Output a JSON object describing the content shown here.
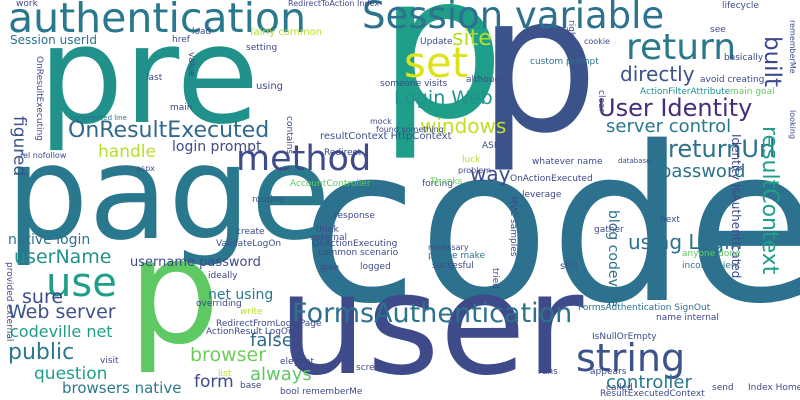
{
  "words": [
    {
      "text": "code",
      "color": "#2c728e"
    },
    {
      "text": "p",
      "color": "#1f9e89"
    },
    {
      "text": "user",
      "color": "#3e4a89"
    },
    {
      "text": "page",
      "color": "#2a788e"
    },
    {
      "text": "pre",
      "color": "#21918c"
    },
    {
      "text": "p",
      "color": "#3b528b"
    },
    {
      "text": "p",
      "color": "#5ec962"
    },
    {
      "text": "authentication",
      "color": "#2a788e"
    },
    {
      "text": "Session variable",
      "color": "#2c728e"
    },
    {
      "text": "method",
      "color": "#3e4a89"
    },
    {
      "text": "use",
      "color": "#1f9e89"
    },
    {
      "text": "set",
      "color": "#dde318"
    },
    {
      "text": "return",
      "color": "#2a788e"
    },
    {
      "text": "string",
      "color": "#3b528b"
    },
    {
      "text": "FormsAuthentication",
      "color": "#2c728e"
    },
    {
      "text": "OnResultExecuted",
      "color": "#31688e"
    },
    {
      "text": "User Identity",
      "color": "#472c7a"
    },
    {
      "text": "returnUrl",
      "color": "#2c728e"
    },
    {
      "text": "resultContext",
      "color": "#1f9e89"
    },
    {
      "text": "built",
      "color": "#3e4a89"
    },
    {
      "text": "directly",
      "color": "#3b528b"
    },
    {
      "text": "Login Web",
      "color": "#21918c"
    },
    {
      "text": "site",
      "color": "#b5de2b"
    },
    {
      "text": "password",
      "color": "#2c728e"
    },
    {
      "text": "windows",
      "color": "#c2df23"
    },
    {
      "text": "server control",
      "color": "#2a788e"
    },
    {
      "text": "userName",
      "color": "#21918c"
    },
    {
      "text": "Web server",
      "color": "#3b528b"
    },
    {
      "text": "using Login",
      "color": "#2c728e"
    },
    {
      "text": "public",
      "color": "#2a788e"
    },
    {
      "text": "browser",
      "color": "#6ccd5a"
    },
    {
      "text": "false",
      "color": "#31688e"
    },
    {
      "text": "question",
      "color": "#1f9e89"
    },
    {
      "text": "always",
      "color": "#5ec962"
    },
    {
      "text": "form",
      "color": "#3e4a89"
    },
    {
      "text": "controller",
      "color": "#2a788e"
    },
    {
      "text": "handle",
      "color": "#b5de2b"
    },
    {
      "text": "login prompt",
      "color": "#3e4a89"
    },
    {
      "text": "way",
      "color": "#3e4a89"
    },
    {
      "text": "figured",
      "color": "#3b528b"
    },
    {
      "text": "sure",
      "color": "#3e4a89"
    },
    {
      "text": "codeville net",
      "color": "#1f9e89"
    },
    {
      "text": "browsers native",
      "color": "#2a788e"
    },
    {
      "text": "native login",
      "color": "#2c728e"
    },
    {
      "text": "username password",
      "color": "#3e4a89"
    },
    {
      "text": "net using",
      "color": "#2a788e"
    },
    {
      "text": "blog codeville",
      "color": "#2c728e"
    },
    {
      "text": "Identity IsAuthenticated",
      "color": "#3e4a89"
    },
    {
      "text": "resultContext HttpContext",
      "color": "#3b528b"
    },
    {
      "text": "Session userId",
      "color": "#2c728e"
    },
    {
      "text": "ActionFilterAttribute",
      "color": "#21918c"
    },
    {
      "text": "RedirectFromLoginPage",
      "color": "#3e4a89"
    },
    {
      "text": "FormsAuthentication SignOut",
      "color": "#2c728e"
    },
    {
      "text": "IsNullOrEmpty",
      "color": "#3e4a89"
    },
    {
      "text": "OnActionExecuting",
      "color": "#3e4a89"
    },
    {
      "text": "ValidateLogOn",
      "color": "#3b528b"
    },
    {
      "text": "OnActionExecuted",
      "color": "#3e4a89"
    },
    {
      "text": "AccountController",
      "color": "#5ec962"
    },
    {
      "text": "please make",
      "color": "#2c728e"
    },
    {
      "text": "necessary",
      "color": "#3e4a89"
    },
    {
      "text": "succesful",
      "color": "#3e4a89"
    },
    {
      "text": "common scenario",
      "color": "#3e4a89"
    },
    {
      "text": "logged",
      "color": "#3e4a89"
    },
    {
      "text": "still",
      "color": "#3b528b"
    },
    {
      "text": "gather",
      "color": "#3e4a89"
    },
    {
      "text": "next",
      "color": "#3e4a89"
    },
    {
      "text": "anyone done",
      "color": "#5ec962"
    },
    {
      "text": "inconvenient",
      "color": "#2c728e"
    },
    {
      "text": "database",
      "color": "#3e4a89"
    },
    {
      "text": "whatever name",
      "color": "#3e4a89"
    },
    {
      "text": "forcing",
      "color": "#3e4a89"
    },
    {
      "text": "Thanks",
      "color": "#6ccd5a"
    },
    {
      "text": "problem",
      "color": "#3e4a89"
    },
    {
      "text": "luck",
      "color": "#b5de2b"
    },
    {
      "text": "Redirect",
      "color": "#3e4a89"
    },
    {
      "text": "mock",
      "color": "#3e4a89"
    },
    {
      "text": "found something",
      "color": "#3e4a89"
    },
    {
      "text": "someone visits",
      "color": "#3e4a89"
    },
    {
      "text": "although",
      "color": "#3e4a89"
    },
    {
      "text": "custom prompt",
      "color": "#2c728e"
    },
    {
      "text": "Update",
      "color": "#3e4a89"
    },
    {
      "text": "cookie",
      "color": "#3e4a89"
    },
    {
      "text": "see",
      "color": "#3e4a89"
    },
    {
      "text": "basically",
      "color": "#3e4a89"
    },
    {
      "text": "lifecycle",
      "color": "#3e4a89"
    },
    {
      "text": "avoid creating",
      "color": "#3e4a89"
    },
    {
      "text": "main goal",
      "color": "#5ec962"
    },
    {
      "text": "rememberMe",
      "color": "#3e4a89"
    },
    {
      "text": "looking",
      "color": "#3e4a89"
    },
    {
      "text": "work",
      "color": "#3e4a89"
    },
    {
      "text": "href",
      "color": "#3e4a89"
    },
    {
      "text": "load",
      "color": "#3e4a89"
    },
    {
      "text": "fairly common",
      "color": "#b5de2b"
    },
    {
      "text": "setting",
      "color": "#3e4a89"
    },
    {
      "text": "main",
      "color": "#3e4a89"
    },
    {
      "text": "last",
      "color": "#3e4a89"
    },
    {
      "text": "value",
      "color": "#3e4a89"
    },
    {
      "text": "using",
      "color": "#3e4a89"
    },
    {
      "text": "commented line",
      "color": "#2c728e"
    },
    {
      "text": "rel nofollow",
      "color": "#3e4a89"
    },
    {
      "text": "aspx",
      "color": "#3e4a89"
    },
    {
      "text": "create",
      "color": "#3e4a89"
    },
    {
      "text": "routine",
      "color": "#3e4a89"
    },
    {
      "text": "response",
      "color": "#3e4a89"
    },
    {
      "text": "think",
      "color": "#3e4a89"
    },
    {
      "text": "external",
      "color": "#3e4a89"
    },
    {
      "text": "give",
      "color": "#3e4a89"
    },
    {
      "text": "leverage",
      "color": "#3e4a89"
    },
    {
      "text": "tried",
      "color": "#3e4a89"
    },
    {
      "text": "ideally",
      "color": "#3e4a89"
    },
    {
      "text": "overriding",
      "color": "#3e4a89"
    },
    {
      "text": "write",
      "color": "#b5de2b"
    },
    {
      "text": "visit",
      "color": "#3e4a89"
    },
    {
      "text": "elegant",
      "color": "#3e4a89"
    },
    {
      "text": "screen",
      "color": "#3e4a89"
    },
    {
      "text": "list",
      "color": "#b5de2b"
    },
    {
      "text": "base",
      "color": "#3e4a89"
    },
    {
      "text": "bool rememberMe",
      "color": "#3e4a89"
    },
    {
      "text": "runs",
      "color": "#3e4a89"
    },
    {
      "text": "appears",
      "color": "#3e4a89"
    },
    {
      "text": "ResultExecutedContext",
      "color": "#3e4a89"
    },
    {
      "text": "called",
      "color": "#3e4a89"
    },
    {
      "text": "send",
      "color": "#3e4a89"
    },
    {
      "text": "Index Home",
      "color": "#3e4a89"
    },
    {
      "text": "ASP",
      "color": "#3e4a89"
    },
    {
      "text": "provided external",
      "color": "#3e4a89"
    },
    {
      "text": "RedirectToAction Index",
      "color": "#3e4a89"
    },
    {
      "text": "ActionResult LogOn",
      "color": "#3e4a89"
    },
    {
      "text": "name internal",
      "color": "#3e4a89"
    },
    {
      "text": "right",
      "color": "#3e4a89"
    },
    {
      "text": "clear",
      "color": "#3e4a89"
    },
    {
      "text": "MVC samples",
      "color": "#3e4a89"
    },
    {
      "text": "contains",
      "color": "#3e4a89"
    },
    {
      "text": "OnResultExecuting",
      "color": "#3e4a89"
    }
  ]
}
